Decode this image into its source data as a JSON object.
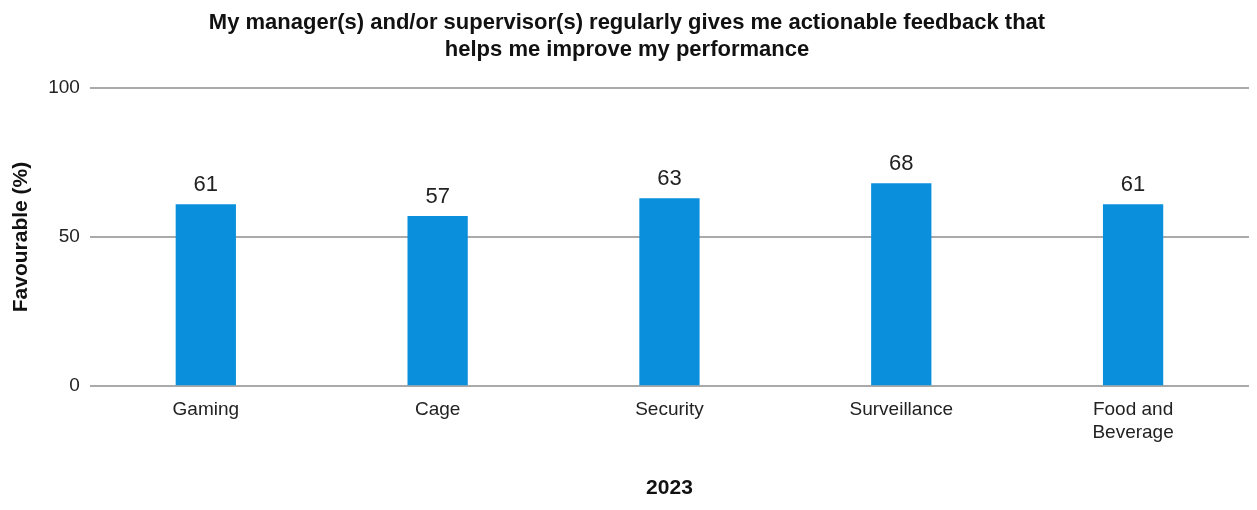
{
  "chart_data": {
    "type": "bar",
    "title": "My manager(s) and/or supervisor(s) regularly gives me actionable feedback that helps me improve my performance",
    "xlabel": "2023",
    "ylabel": "Favourable (%)",
    "categories": [
      "Gaming",
      "Cage",
      "Security",
      "Surveillance",
      "Food and Beverage"
    ],
    "values": [
      61,
      57,
      63,
      68,
      61
    ],
    "color": "#0a8fdc",
    "ylim": [
      0,
      100
    ],
    "yticks": [
      0,
      50,
      100
    ],
    "grid": "y",
    "data_labels": true
  }
}
